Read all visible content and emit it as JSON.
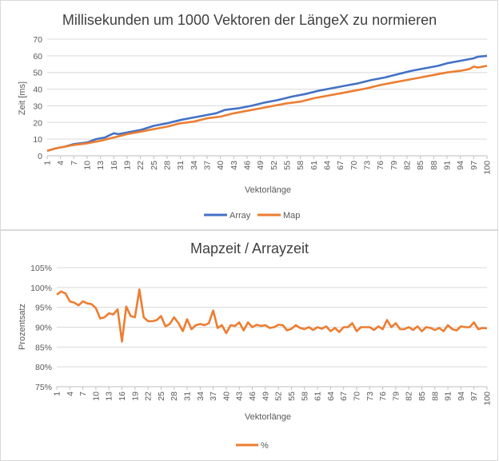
{
  "chart_data": [
    {
      "type": "line",
      "title": "Millisekunden um 1000 Vektoren der LängeX zu normieren",
      "xlabel": "Vektorlänge",
      "ylabel": "Zeit [ms]",
      "ylim": [
        0,
        70
      ],
      "yticks": [
        0,
        10,
        20,
        30,
        40,
        50,
        60,
        70
      ],
      "xticks": [
        1,
        4,
        7,
        10,
        13,
        16,
        19,
        22,
        25,
        28,
        31,
        34,
        37,
        40,
        43,
        46,
        49,
        52,
        55,
        58,
        61,
        64,
        67,
        70,
        73,
        76,
        79,
        82,
        85,
        88,
        91,
        94,
        97,
        100
      ],
      "x_range": [
        1,
        100
      ],
      "grid": "horizontal",
      "legend_position": "bottom",
      "series": [
        {
          "name": "Array",
          "color": "#4472C4",
          "points": [
            [
              1,
              3
            ],
            [
              3,
              4.5
            ],
            [
              5,
              5.5
            ],
            [
              7,
              7
            ],
            [
              10,
              8
            ],
            [
              12,
              10
            ],
            [
              14,
              11
            ],
            [
              16,
              13.5
            ],
            [
              17,
              13
            ],
            [
              20,
              14.5
            ],
            [
              22,
              15.5
            ],
            [
              25,
              18
            ],
            [
              28,
              19.5
            ],
            [
              31,
              21.5
            ],
            [
              34,
              23
            ],
            [
              37,
              24.5
            ],
            [
              39,
              25.5
            ],
            [
              41,
              27.5
            ],
            [
              44,
              28.5
            ],
            [
              47,
              30
            ],
            [
              50,
              32
            ],
            [
              53,
              33.5
            ],
            [
              56,
              35.5
            ],
            [
              59,
              37
            ],
            [
              62,
              39
            ],
            [
              65,
              40.5
            ],
            [
              68,
              42
            ],
            [
              71,
              43.5
            ],
            [
              74,
              45.5
            ],
            [
              77,
              47
            ],
            [
              80,
              49
            ],
            [
              83,
              51
            ],
            [
              86,
              52.5
            ],
            [
              89,
              54
            ],
            [
              91,
              55.5
            ],
            [
              94,
              57
            ],
            [
              97,
              58.5
            ],
            [
              98,
              59.5
            ],
            [
              100,
              60
            ]
          ]
        },
        {
          "name": "Map",
          "color": "#ED7D31",
          "points": [
            [
              1,
              3
            ],
            [
              3,
              4.5
            ],
            [
              5,
              5.5
            ],
            [
              7,
              6.5
            ],
            [
              10,
              7.5
            ],
            [
              13,
              9
            ],
            [
              16,
              11
            ],
            [
              19,
              13
            ],
            [
              22,
              14.5
            ],
            [
              25,
              16
            ],
            [
              28,
              17.5
            ],
            [
              31,
              19.5
            ],
            [
              34,
              20.5
            ],
            [
              37,
              22.5
            ],
            [
              40,
              23.5
            ],
            [
              43,
              25.5
            ],
            [
              46,
              27
            ],
            [
              49,
              28.5
            ],
            [
              52,
              30
            ],
            [
              55,
              31.5
            ],
            [
              58,
              32.5
            ],
            [
              61,
              34.5
            ],
            [
              64,
              36
            ],
            [
              67,
              37.5
            ],
            [
              70,
              39
            ],
            [
              73,
              40.5
            ],
            [
              76,
              42.5
            ],
            [
              79,
              44
            ],
            [
              82,
              45.5
            ],
            [
              85,
              47
            ],
            [
              88,
              48.5
            ],
            [
              91,
              50
            ],
            [
              94,
              51
            ],
            [
              96,
              52
            ],
            [
              97,
              53.5
            ],
            [
              98,
              53
            ],
            [
              100,
              54
            ]
          ]
        }
      ]
    },
    {
      "type": "line",
      "title": "Mapzeit / Arrayzeit",
      "xlabel": "Vektorlänge",
      "ylabel": "Prozentsatz",
      "ylim": [
        0.75,
        1.05
      ],
      "yticks": [
        "75%",
        "80%",
        "85%",
        "90%",
        "95%",
        "100%",
        "105%"
      ],
      "xticks": [
        1,
        4,
        7,
        10,
        13,
        16,
        19,
        22,
        25,
        28,
        31,
        34,
        37,
        40,
        43,
        46,
        49,
        52,
        55,
        58,
        61,
        64,
        67,
        70,
        73,
        76,
        79,
        82,
        85,
        88,
        91,
        94,
        97,
        100
      ],
      "x_range": [
        1,
        100
      ],
      "grid": "horizontal",
      "legend_position": "bottom",
      "series": [
        {
          "name": "%",
          "color": "#ED7D31",
          "points": [
            [
              1,
              0.982
            ],
            [
              2,
              0.99
            ],
            [
              3,
              0.985
            ],
            [
              4,
              0.965
            ],
            [
              5,
              0.962
            ],
            [
              6,
              0.955
            ],
            [
              7,
              0.965
            ],
            [
              8,
              0.96
            ],
            [
              9,
              0.958
            ],
            [
              10,
              0.948
            ],
            [
              11,
              0.922
            ],
            [
              12,
              0.925
            ],
            [
              13,
              0.935
            ],
            [
              14,
              0.932
            ],
            [
              15,
              0.945
            ],
            [
              16,
              0.864
            ],
            [
              17,
              0.952
            ],
            [
              18,
              0.928
            ],
            [
              19,
              0.925
            ],
            [
              20,
              0.995
            ],
            [
              21,
              0.925
            ],
            [
              22,
              0.915
            ],
            [
              23,
              0.915
            ],
            [
              24,
              0.918
            ],
            [
              25,
              0.928
            ],
            [
              26,
              0.902
            ],
            [
              27,
              0.908
            ],
            [
              28,
              0.925
            ],
            [
              29,
              0.91
            ],
            [
              30,
              0.89
            ],
            [
              31,
              0.92
            ],
            [
              32,
              0.895
            ],
            [
              33,
              0.905
            ],
            [
              34,
              0.908
            ],
            [
              35,
              0.905
            ],
            [
              36,
              0.91
            ],
            [
              37,
              0.942
            ],
            [
              38,
              0.898
            ],
            [
              39,
              0.905
            ],
            [
              40,
              0.885
            ],
            [
              41,
              0.905
            ],
            [
              42,
              0.903
            ],
            [
              43,
              0.912
            ],
            [
              44,
              0.892
            ],
            [
              45,
              0.912
            ],
            [
              46,
              0.9
            ],
            [
              47,
              0.906
            ],
            [
              48,
              0.903
            ],
            [
              49,
              0.905
            ],
            [
              50,
              0.898
            ],
            [
              51,
              0.9
            ],
            [
              52,
              0.906
            ],
            [
              53,
              0.905
            ],
            [
              54,
              0.892
            ],
            [
              55,
              0.896
            ],
            [
              56,
              0.905
            ],
            [
              57,
              0.898
            ],
            [
              58,
              0.895
            ],
            [
              59,
              0.9
            ],
            [
              60,
              0.893
            ],
            [
              61,
              0.9
            ],
            [
              62,
              0.896
            ],
            [
              63,
              0.902
            ],
            [
              64,
              0.89
            ],
            [
              65,
              0.898
            ],
            [
              66,
              0.888
            ],
            [
              67,
              0.9
            ],
            [
              68,
              0.9
            ],
            [
              69,
              0.91
            ],
            [
              70,
              0.89
            ],
            [
              71,
              0.9
            ],
            [
              72,
              0.9
            ],
            [
              73,
              0.9
            ],
            [
              74,
              0.893
            ],
            [
              75,
              0.902
            ],
            [
              76,
              0.895
            ],
            [
              77,
              0.918
            ],
            [
              78,
              0.9
            ],
            [
              79,
              0.91
            ],
            [
              80,
              0.895
            ],
            [
              81,
              0.895
            ],
            [
              82,
              0.9
            ],
            [
              83,
              0.893
            ],
            [
              84,
              0.902
            ],
            [
              85,
              0.89
            ],
            [
              86,
              0.9
            ],
            [
              87,
              0.898
            ],
            [
              88,
              0.893
            ],
            [
              89,
              0.898
            ],
            [
              90,
              0.89
            ],
            [
              91,
              0.905
            ],
            [
              92,
              0.895
            ],
            [
              93,
              0.892
            ],
            [
              94,
              0.902
            ],
            [
              95,
              0.9
            ],
            [
              96,
              0.9
            ],
            [
              97,
              0.912
            ],
            [
              98,
              0.895
            ],
            [
              99,
              0.898
            ],
            [
              100,
              0.897
            ]
          ]
        }
      ]
    }
  ]
}
